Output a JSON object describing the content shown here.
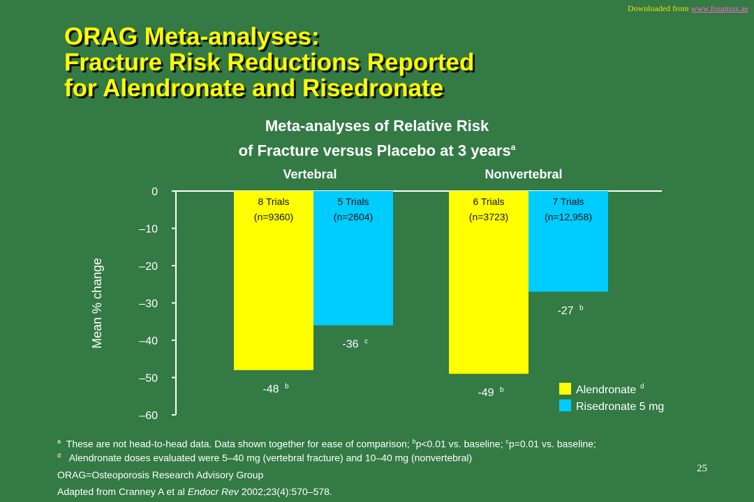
{
  "watermark": {
    "prefix": "Downloaded from ",
    "link": "www.fosamax.ae"
  },
  "title": {
    "line1": "ORAG Meta-analyses:",
    "line2": "Fracture Risk Reductions Reported",
    "line3": "for Alendronate and Risedronate"
  },
  "colors": {
    "background": "#337a45",
    "title": "#ffff00",
    "alendronate": "#ffff00",
    "risedronate": "#00ccff"
  },
  "chart_data": {
    "type": "bar",
    "title_line1": "Meta-analyses of Relative Risk",
    "title_line2": "of Fracture versus Placebo at 3 years",
    "title_sup": "a",
    "ylabel": "Mean % change",
    "ylim": [
      -60,
      0
    ],
    "yticks": [
      0,
      -10,
      -20,
      -30,
      -40,
      -50,
      -60
    ],
    "ytick_labels": [
      "0",
      "–10",
      "–20",
      "–30",
      "–40",
      "–50",
      "–60"
    ],
    "grid": false,
    "legend_position": "bottom-right",
    "categories": [
      "Vertebral",
      "Nonvertebral"
    ],
    "series": [
      {
        "name": "Alendronate",
        "name_sup": "d",
        "color": "#ffff00",
        "values": [
          -48,
          -49
        ],
        "value_labels": [
          "-48",
          "-49"
        ],
        "sups": [
          "b",
          "b"
        ],
        "trials": [
          "8 Trials",
          "6 Trials"
        ],
        "n": [
          "(n=9360)",
          "(n=3723)"
        ]
      },
      {
        "name": "Risedronate 5 mg",
        "name_sup": "",
        "color": "#00ccff",
        "values": [
          -36,
          -27
        ],
        "value_labels": [
          "-36",
          "-27"
        ],
        "sups": [
          "c",
          "b"
        ],
        "trials": [
          "5 Trials",
          "7 Trials"
        ],
        "n": [
          "(n=2604)",
          "(n=12,958)"
        ]
      }
    ]
  },
  "footnotes": {
    "a_sup": "a",
    "a_text": "These are not head-to-head data.  Data shown together for ease of comparison; ",
    "b_sup": "b",
    "b_text": "p<0.01 vs. baseline; ",
    "c_sup": "c",
    "c_text": "p=0.01 vs. baseline;",
    "d_sup": "d",
    "d_text": "Alendronate doses evaluated were 5–40 mg (vertebral fracture) and 10–40 mg (nonvertebral)",
    "orag": "ORAG=Osteoporosis Research Advisory Group",
    "source_prefix": "Adapted from Cranney A et al ",
    "source_journal": "Endocr Rev",
    "source_suffix": " 2002;23(4):570–578."
  },
  "slide_number": "25"
}
